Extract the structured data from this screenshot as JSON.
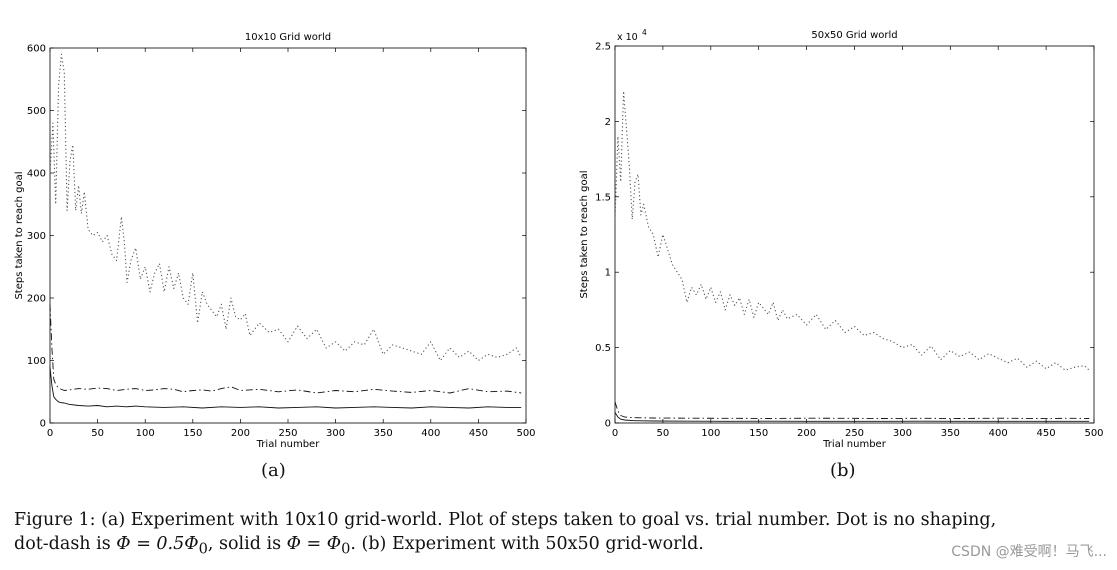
{
  "figure": {
    "caption_line1": "Figure 1: (a) Experiment with 10x10 grid-world. Plot of steps taken to goal vs. trial number. Dot is no shaping,",
    "caption_line2_parts": [
      "dot-dash is ",
      "Φ = 0.5Φ",
      "0",
      ", solid is ",
      "Φ = Φ",
      "0",
      ". (b) Experiment with 50x50 grid-world."
    ],
    "watermark": "CSDN @难受啊！马飞...",
    "subcaptions": [
      "(a)",
      "(b)"
    ]
  },
  "chart_data": [
    {
      "type": "line",
      "title": "10x10 Grid world",
      "xlabel": "Trial number",
      "ylabel": "Steps taken to reach goal",
      "xlim": [
        0,
        500
      ],
      "ylim": [
        0,
        600
      ],
      "xticks": [
        0,
        50,
        100,
        150,
        200,
        250,
        300,
        350,
        400,
        450,
        500
      ],
      "yticks": [
        0,
        100,
        200,
        300,
        400,
        500,
        600
      ],
      "ytick_labels": [
        "0",
        "100",
        "200",
        "300",
        "400",
        "500",
        "600"
      ],
      "exponent_label": "",
      "grid": false,
      "series": [
        {
          "style": "dotted",
          "x": [
            0,
            3,
            6,
            9,
            12,
            15,
            18,
            21,
            24,
            27,
            30,
            33,
            36,
            40,
            45,
            50,
            55,
            60,
            65,
            70,
            75,
            78,
            81,
            85,
            90,
            95,
            100,
            105,
            110,
            115,
            120,
            125,
            130,
            135,
            140,
            145,
            150,
            155,
            160,
            165,
            170,
            175,
            180,
            185,
            190,
            195,
            200,
            205,
            210,
            220,
            230,
            240,
            250,
            260,
            270,
            280,
            290,
            300,
            310,
            320,
            330,
            340,
            350,
            360,
            370,
            380,
            390,
            400,
            410,
            420,
            430,
            440,
            450,
            460,
            470,
            480,
            490,
            495
          ],
          "y": [
            400,
            480,
            350,
            540,
            590,
            560,
            340,
            420,
            445,
            340,
            380,
            335,
            370,
            310,
            300,
            305,
            290,
            300,
            270,
            260,
            330,
            290,
            225,
            260,
            280,
            230,
            250,
            210,
            240,
            255,
            210,
            250,
            215,
            240,
            200,
            190,
            240,
            160,
            210,
            190,
            180,
            170,
            190,
            150,
            200,
            170,
            165,
            175,
            140,
            160,
            145,
            150,
            130,
            155,
            135,
            150,
            120,
            130,
            115,
            130,
            125,
            150,
            110,
            125,
            120,
            115,
            110,
            130,
            100,
            120,
            105,
            115,
            100,
            110,
            105,
            110,
            120,
            105
          ]
        },
        {
          "style": "dashdot",
          "x": [
            0,
            2,
            4,
            6,
            8,
            10,
            15,
            20,
            30,
            40,
            50,
            60,
            70,
            80,
            90,
            100,
            110,
            120,
            130,
            140,
            150,
            160,
            170,
            180,
            190,
            200,
            220,
            240,
            260,
            280,
            300,
            320,
            340,
            360,
            380,
            400,
            420,
            440,
            460,
            480,
            495
          ],
          "y": [
            190,
            120,
            70,
            62,
            58,
            55,
            52,
            53,
            55,
            54,
            56,
            55,
            52,
            54,
            55,
            52,
            53,
            55,
            54,
            50,
            52,
            53,
            51,
            55,
            58,
            52,
            54,
            50,
            53,
            48,
            52,
            50,
            54,
            51,
            49,
            52,
            48,
            55,
            50,
            51,
            48
          ]
        },
        {
          "style": "solid",
          "x": [
            0,
            2,
            4,
            6,
            8,
            10,
            15,
            20,
            30,
            40,
            50,
            60,
            70,
            80,
            90,
            100,
            120,
            140,
            160,
            180,
            200,
            220,
            240,
            260,
            280,
            300,
            320,
            340,
            360,
            380,
            400,
            420,
            440,
            460,
            480,
            495
          ],
          "y": [
            90,
            60,
            42,
            38,
            35,
            33,
            32,
            30,
            28,
            27,
            28,
            26,
            27,
            26,
            27,
            26,
            25,
            26,
            24,
            26,
            25,
            26,
            24,
            25,
            26,
            24,
            25,
            26,
            25,
            24,
            26,
            25,
            24,
            26,
            25,
            25
          ]
        }
      ]
    },
    {
      "type": "line",
      "title": "50x50 Grid world",
      "xlabel": "Trial number",
      "ylabel": "Steps taken to reach goal",
      "xlim": [
        0,
        500
      ],
      "ylim": [
        0,
        25000
      ],
      "xticks": [
        0,
        50,
        100,
        150,
        200,
        250,
        300,
        350,
        400,
        450,
        500
      ],
      "yticks": [
        0,
        5000,
        10000,
        15000,
        20000,
        25000
      ],
      "ytick_labels": [
        "0",
        "0.5",
        "1",
        "1.5",
        "2",
        "2.5"
      ],
      "exponent_label": "x 10",
      "exponent_power": "4",
      "grid": false,
      "series": [
        {
          "style": "dotted",
          "x": [
            0,
            3,
            6,
            9,
            12,
            15,
            18,
            21,
            24,
            27,
            30,
            35,
            40,
            45,
            50,
            55,
            60,
            65,
            70,
            75,
            80,
            85,
            90,
            95,
            100,
            105,
            110,
            115,
            120,
            125,
            130,
            135,
            140,
            145,
            150,
            155,
            160,
            165,
            170,
            175,
            180,
            190,
            200,
            210,
            220,
            230,
            240,
            250,
            260,
            270,
            280,
            290,
            300,
            310,
            320,
            330,
            340,
            350,
            360,
            370,
            380,
            390,
            400,
            410,
            420,
            430,
            440,
            450,
            460,
            470,
            480,
            490,
            495
          ],
          "y": [
            13500,
            19000,
            16000,
            22000,
            19500,
            17000,
            13500,
            16000,
            16500,
            13800,
            14500,
            13000,
            12500,
            11000,
            12500,
            11500,
            10500,
            10000,
            9500,
            8000,
            9000,
            8500,
            9200,
            8200,
            9000,
            8000,
            8700,
            7500,
            8500,
            7800,
            8300,
            7200,
            8200,
            7000,
            8000,
            7600,
            7200,
            8000,
            6800,
            7500,
            6900,
            7200,
            6500,
            7200,
            6200,
            6800,
            6000,
            6400,
            5800,
            6000,
            5600,
            5400,
            5000,
            5200,
            4500,
            5100,
            4200,
            4800,
            4400,
            4700,
            4200,
            4600,
            4300,
            4000,
            4300,
            3700,
            4100,
            3600,
            4000,
            3500,
            3700,
            3800,
            3500
          ]
        },
        {
          "style": "dashdot",
          "x": [
            0,
            3,
            6,
            10,
            20,
            40,
            80,
            120,
            160,
            200,
            240,
            280,
            320,
            360,
            400,
            440,
            480,
            495
          ],
          "y": [
            1400,
            800,
            500,
            400,
            350,
            330,
            320,
            310,
            300,
            320,
            310,
            300,
            310,
            300,
            320,
            300,
            310,
            300
          ]
        },
        {
          "style": "solid",
          "x": [
            0,
            3,
            6,
            10,
            20,
            40,
            80,
            120,
            160,
            200,
            240,
            280,
            320,
            360,
            400,
            440,
            480,
            495
          ],
          "y": [
            700,
            400,
            250,
            200,
            150,
            130,
            120,
            110,
            120,
            110,
            115,
            110,
            120,
            110,
            115,
            110,
            110,
            110
          ]
        }
      ]
    }
  ]
}
